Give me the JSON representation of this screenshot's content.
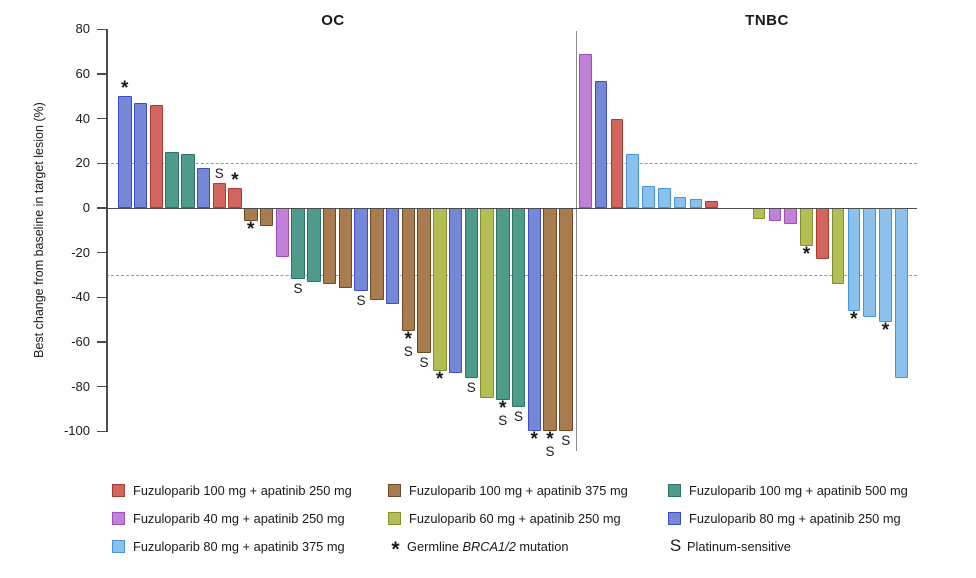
{
  "chart_data": {
    "type": "bar",
    "subtype": "waterfall",
    "title": "",
    "ylabel": "Best change from baseline in target lesion (%)",
    "ylim": [
      -100,
      80
    ],
    "yticks": [
      80,
      60,
      40,
      20,
      0,
      -20,
      -40,
      -60,
      -80,
      -100
    ],
    "reference_lines": [
      20,
      -30
    ],
    "grid": "off",
    "legend_position": "bottom",
    "groups": {
      "fuzu100_apa250": {
        "label": "Fuzuloparib 100 mg + apatinib 250 mg",
        "fill": "#D2655E",
        "border": "#AC3B32"
      },
      "fuzu100_apa375": {
        "label": "Fuzuloparib 100 mg + apatinib 375 mg",
        "fill": "#A87C4E",
        "border": "#6C4A26"
      },
      "fuzu100_apa500": {
        "label": "Fuzuloparib 100 mg + apatinib 500 mg",
        "fill": "#4E9B8B",
        "border": "#2E7266"
      },
      "fuzu40_apa250": {
        "label": "Fuzuloparib 40 mg + apatinib 250 mg",
        "fill": "#C181D6",
        "border": "#9B4FBF"
      },
      "fuzu60_apa250": {
        "label": "Fuzuloparib 60 mg + apatinib 250 mg",
        "fill": "#B5BE55",
        "border": "#838F2F"
      },
      "fuzu80_apa250": {
        "label": "Fuzuloparib 80 mg + apatinib 250 mg",
        "fill": "#7588D8",
        "border": "#3C4EC6"
      },
      "fuzu80_apa375": {
        "label": "Fuzuloparib 80 mg + apatinib 375 mg",
        "fill": "#8DC1ED",
        "border": "#4692DE"
      }
    },
    "panels": [
      {
        "title": "OC",
        "bars": [
          {
            "group": "fuzu80_apa250",
            "value": 50,
            "flags": "*"
          },
          {
            "group": "fuzu80_apa250",
            "value": 47,
            "flags": ""
          },
          {
            "group": "fuzu100_apa250",
            "value": 46,
            "flags": ""
          },
          {
            "group": "fuzu100_apa500",
            "value": 25,
            "flags": ""
          },
          {
            "group": "fuzu100_apa500",
            "value": 24,
            "flags": ""
          },
          {
            "group": "fuzu80_apa250",
            "value": 18,
            "flags": ""
          },
          {
            "group": "fuzu100_apa250",
            "value": 11,
            "flags": "S"
          },
          {
            "group": "fuzu100_apa250",
            "value": 9,
            "flags": "*"
          },
          {
            "group": "fuzu100_apa375",
            "value": -6,
            "flags": "*"
          },
          {
            "group": "fuzu100_apa375",
            "value": -8,
            "flags": ""
          },
          {
            "group": "fuzu40_apa250",
            "value": -22,
            "flags": ""
          },
          {
            "group": "fuzu100_apa500",
            "value": -32,
            "flags": "S"
          },
          {
            "group": "fuzu100_apa500",
            "value": -33,
            "flags": ""
          },
          {
            "group": "fuzu100_apa375",
            "value": -34,
            "flags": ""
          },
          {
            "group": "fuzu100_apa375",
            "value": -36,
            "flags": ""
          },
          {
            "group": "fuzu80_apa250",
            "value": -37,
            "flags": "S"
          },
          {
            "group": "fuzu100_apa375",
            "value": -41,
            "flags": ""
          },
          {
            "group": "fuzu80_apa250",
            "value": -43,
            "flags": ""
          },
          {
            "group": "fuzu100_apa375",
            "value": -55,
            "flags": "*S"
          },
          {
            "group": "fuzu100_apa375",
            "value": -65,
            "flags": "S"
          },
          {
            "group": "fuzu60_apa250",
            "value": -73,
            "flags": "*"
          },
          {
            "group": "fuzu80_apa250",
            "value": -74,
            "flags": ""
          },
          {
            "group": "fuzu100_apa500",
            "value": -76,
            "flags": "S"
          },
          {
            "group": "fuzu60_apa250",
            "value": -85,
            "flags": ""
          },
          {
            "group": "fuzu100_apa500",
            "value": -86,
            "flags": "*S"
          },
          {
            "group": "fuzu100_apa500",
            "value": -89,
            "flags": "S"
          },
          {
            "group": "fuzu80_apa250",
            "value": -100,
            "flags": "*"
          },
          {
            "group": "fuzu100_apa375",
            "value": -100,
            "flags": "*S"
          },
          {
            "group": "fuzu100_apa375",
            "value": -100,
            "flags": "S"
          }
        ]
      },
      {
        "title": "TNBC",
        "bars": [
          {
            "group": "fuzu40_apa250",
            "value": 69,
            "flags": ""
          },
          {
            "group": "fuzu80_apa250",
            "value": 57,
            "flags": ""
          },
          {
            "group": "fuzu100_apa250",
            "value": 40,
            "flags": ""
          },
          {
            "group": "fuzu80_apa375",
            "value": 24,
            "flags": ""
          },
          {
            "group": "fuzu80_apa375",
            "value": 10,
            "flags": ""
          },
          {
            "group": "fuzu80_apa375",
            "value": 9,
            "flags": ""
          },
          {
            "group": "fuzu80_apa375",
            "value": 5,
            "flags": ""
          },
          {
            "group": "fuzu80_apa375",
            "value": 4,
            "flags": ""
          },
          {
            "group": "fuzu100_apa250",
            "value": 3,
            "flags": ""
          },
          {
            "group": "",
            "value": 0,
            "flags": ""
          },
          {
            "group": "",
            "value": 0,
            "flags": ""
          },
          {
            "group": "fuzu60_apa250",
            "value": -5,
            "flags": ""
          },
          {
            "group": "fuzu40_apa250",
            "value": -6,
            "flags": ""
          },
          {
            "group": "fuzu40_apa250",
            "value": -7,
            "flags": ""
          },
          {
            "group": "fuzu60_apa250",
            "value": -17,
            "flags": "*"
          },
          {
            "group": "fuzu100_apa250",
            "value": -23,
            "flags": ""
          },
          {
            "group": "fuzu60_apa250",
            "value": -34,
            "flags": ""
          },
          {
            "group": "fuzu80_apa375",
            "value": -46,
            "flags": "*"
          },
          {
            "group": "fuzu80_apa375",
            "value": -49,
            "flags": ""
          },
          {
            "group": "fuzu80_apa375",
            "value": -51,
            "flags": "*"
          },
          {
            "group": "fuzu80_apa375",
            "value": -76,
            "flags": ""
          }
        ]
      }
    ],
    "legend": {
      "columns": [
        [
          "fuzu100_apa250",
          "fuzu40_apa250",
          "fuzu80_apa375"
        ],
        [
          "fuzu100_apa375",
          "fuzu60_apa250",
          "star"
        ],
        [
          "fuzu100_apa500",
          "fuzu80_apa250",
          "s"
        ]
      ],
      "star_symbol": "*",
      "star_label_prefix": "Germline ",
      "star_label_italic": "BRCA1/2",
      "star_label_suffix": " mutation",
      "s_symbol": "S",
      "s_label": "Platinum-sensitive"
    }
  }
}
